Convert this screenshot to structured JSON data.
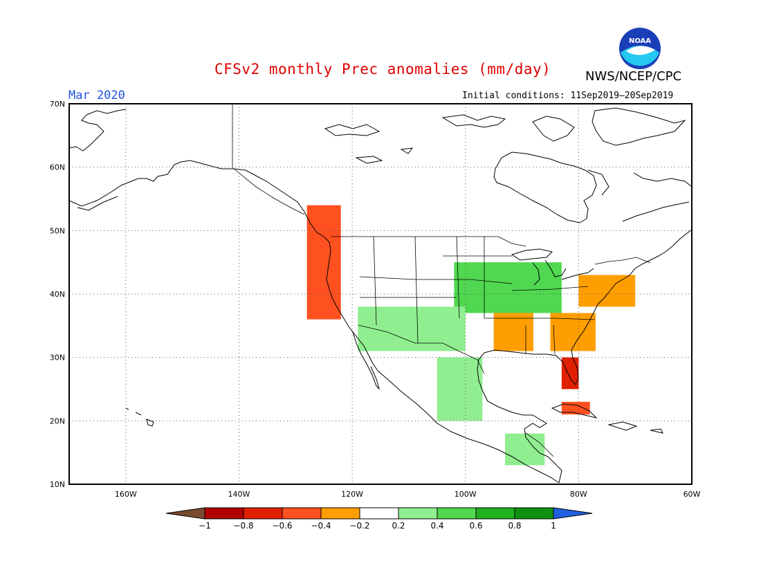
{
  "header": {
    "title": "CFSv2 monthly Prec anomalies (mm/day)",
    "month": "Mar 2020",
    "initial_conditions": "Initial conditions: 11Sep2019–20Sep2019",
    "agency": "NWS/NCEP/CPC",
    "logo_text": "NOAA",
    "title_color": "#e00000",
    "month_color": "#2050e0"
  },
  "map": {
    "projection": "equirectangular",
    "lon_range": [
      -170,
      -60
    ],
    "lat_range": [
      10,
      70
    ],
    "lat_ticks": [
      "10N",
      "20N",
      "30N",
      "40N",
      "50N",
      "60N",
      "70N"
    ],
    "lon_ticks": [
      "160W",
      "140W",
      "120W",
      "100W",
      "80W",
      "60W"
    ],
    "grid": "dotted"
  },
  "colorbar": {
    "labels": [
      "−1",
      "−0.8",
      "−0.6",
      "−0.4",
      "−0.2",
      "0.2",
      "0.4",
      "0.6",
      "0.8",
      "1"
    ],
    "colors": [
      "#7a4a2e",
      "#b00000",
      "#e02000",
      "#ff5020",
      "#ff9e00",
      "#ffffff",
      "#90ee90",
      "#50d850",
      "#20b020",
      "#109010",
      "#2060e0"
    ]
  },
  "chart_data": {
    "type": "heatmap",
    "title": "CFSv2 monthly Prec anomalies (mm/day)",
    "units": "mm/day",
    "valid_month": "Mar 2020",
    "approximate_anomaly_regions": [
      {
        "region": "Pacific Northwest / northern California coast",
        "lat": [
          36,
          54
        ],
        "lon": [
          -128,
          -122
        ],
        "value": -0.6
      },
      {
        "region": "Florida peninsula",
        "lat": [
          25,
          30
        ],
        "lon": [
          -83,
          -80
        ],
        "value": -0.7
      },
      {
        "region": "Lower Mississippi valley",
        "lat": [
          31,
          37
        ],
        "lon": [
          -95,
          -88
        ],
        "value": -0.4
      },
      {
        "region": "Southeast US / Carolinas",
        "lat": [
          31,
          37
        ],
        "lon": [
          -85,
          -77
        ],
        "value": -0.3
      },
      {
        "region": "Mid-Atlantic / New England coast",
        "lat": [
          38,
          43
        ],
        "lon": [
          -80,
          -70
        ],
        "value": -0.3
      },
      {
        "region": "Cuba",
        "lat": [
          21,
          23
        ],
        "lon": [
          -83,
          -78
        ],
        "value": -0.5
      },
      {
        "region": "Central Plains / Midwest",
        "lat": [
          37,
          45
        ],
        "lon": [
          -102,
          -83
        ],
        "value": 0.4
      },
      {
        "region": "Southwest US / N Mexico",
        "lat": [
          31,
          38
        ],
        "lon": [
          -119,
          -100
        ],
        "value": 0.3
      },
      {
        "region": "Mexico interior",
        "lat": [
          20,
          30
        ],
        "lon": [
          -105,
          -97
        ],
        "value": 0.3
      },
      {
        "region": "Central America",
        "lat": [
          13,
          18
        ],
        "lon": [
          -93,
          -86
        ],
        "value": 0.3
      }
    ]
  }
}
